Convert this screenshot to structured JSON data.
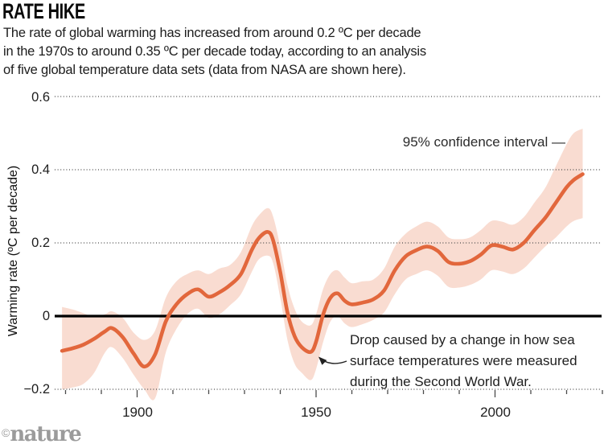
{
  "header": {
    "title": "RATE HIKE",
    "subtitle_lines": [
      "The rate of global warming has increased from around 0.2 ºC per decade",
      "in the 1970s to around 0.35 ºC per decade today, according to an analysis",
      "of five global temperature data sets (data from NASA are shown here)."
    ]
  },
  "annotations": {
    "confidence_interval": "95% confidence interval —",
    "drop_note_lines": [
      "Drop caused by a change in how sea",
      "surface temperatures were measured",
      "during the Second World War."
    ]
  },
  "watermark": {
    "symbol": "©",
    "brand": "nature"
  },
  "colors": {
    "line": "#e2673c",
    "band": "#f9dcd1",
    "zero_axis": "#000000",
    "grid": "#4a4a4a",
    "annotation_arrow": "#222222",
    "watermark": "#9b9b9b"
  },
  "chart_data": {
    "type": "line",
    "title": "RATE HIKE",
    "xlabel": "",
    "ylabel": "Warming rate (ºC per decade)",
    "xlim": [
      1877,
      2030
    ],
    "ylim": [
      -0.2,
      0.6
    ],
    "grid": "dotted-horizontal",
    "legend_position": "none",
    "y_ticks": {
      "values": [
        0.6,
        0.4,
        0.2,
        0,
        -0.2
      ],
      "labels": [
        "0.6",
        "0.4",
        "0.2",
        "0",
        "−0.2"
      ]
    },
    "x_ticks": {
      "values": [
        1900,
        1950,
        2000
      ],
      "labels": [
        "1900",
        "1950",
        "2000"
      ],
      "minor_start": 1880,
      "minor_end": 2030,
      "minor_step": 10
    },
    "series": [
      {
        "name": "Warming rate (NASA data)",
        "x": [
          1879,
          1882,
          1885,
          1888,
          1891,
          1893,
          1896,
          1899,
          1902,
          1905,
          1908,
          1911,
          1914,
          1917,
          1920,
          1923,
          1926,
          1929,
          1932,
          1934,
          1936.5,
          1938,
          1940,
          1942,
          1944,
          1946,
          1948.5,
          1950,
          1952,
          1954,
          1956,
          1958,
          1960,
          1963,
          1966,
          1969,
          1972,
          1975,
          1978,
          1981,
          1984,
          1987,
          1990,
          1993,
          1996,
          1999,
          2002,
          2005,
          2008,
          2011,
          2014,
          2017,
          2020,
          2022,
          2024.5
        ],
        "y": [
          -0.095,
          -0.088,
          -0.078,
          -0.062,
          -0.042,
          -0.033,
          -0.058,
          -0.102,
          -0.138,
          -0.105,
          -0.015,
          0.032,
          0.06,
          0.073,
          0.053,
          0.065,
          0.085,
          0.115,
          0.18,
          0.213,
          0.23,
          0.207,
          0.12,
          0.01,
          -0.055,
          -0.085,
          -0.098,
          -0.07,
          0.005,
          0.05,
          0.062,
          0.042,
          0.032,
          0.037,
          0.046,
          0.07,
          0.125,
          0.163,
          0.18,
          0.19,
          0.178,
          0.148,
          0.143,
          0.15,
          0.168,
          0.193,
          0.19,
          0.182,
          0.2,
          0.235,
          0.268,
          0.31,
          0.352,
          0.372,
          0.388
        ]
      }
    ],
    "band": {
      "name": "95% confidence interval",
      "x": [
        1879,
        1882,
        1885,
        1888,
        1891,
        1893,
        1896,
        1899,
        1902,
        1905,
        1908,
        1911,
        1914,
        1917,
        1920,
        1923,
        1926,
        1929,
        1932,
        1934,
        1936.5,
        1938,
        1940,
        1942,
        1944,
        1946,
        1948.5,
        1950,
        1952,
        1954,
        1956,
        1958,
        1960,
        1963,
        1966,
        1969,
        1972,
        1975,
        1978,
        1981,
        1984,
        1987,
        1990,
        1993,
        1996,
        1999,
        2002,
        2005,
        2008,
        2011,
        2014,
        2017,
        2020,
        2022,
        2024.5
      ],
      "upper": [
        0.025,
        0.018,
        0.008,
        -0.003,
        0.005,
        0.013,
        -0.005,
        -0.045,
        -0.065,
        -0.04,
        0.05,
        0.095,
        0.115,
        0.125,
        0.115,
        0.13,
        0.14,
        0.175,
        0.245,
        0.275,
        0.295,
        0.272,
        0.19,
        0.085,
        0.02,
        -0.015,
        -0.025,
        0.005,
        0.075,
        0.115,
        0.125,
        0.105,
        0.09,
        0.095,
        0.1,
        0.13,
        0.19,
        0.225,
        0.245,
        0.258,
        0.245,
        0.215,
        0.21,
        0.215,
        0.235,
        0.26,
        0.258,
        0.25,
        0.27,
        0.31,
        0.35,
        0.41,
        0.47,
        0.5,
        0.512
      ],
      "lower": [
        -0.2,
        -0.195,
        -0.185,
        -0.155,
        -0.1,
        -0.085,
        -0.115,
        -0.16,
        -0.2,
        -0.225,
        -0.1,
        -0.035,
        0.005,
        0.02,
        -0.005,
        0.005,
        0.03,
        0.06,
        0.12,
        0.155,
        0.165,
        0.145,
        0.05,
        -0.065,
        -0.13,
        -0.155,
        -0.175,
        -0.145,
        -0.07,
        -0.015,
        0,
        -0.02,
        -0.03,
        -0.022,
        -0.01,
        0.01,
        0.06,
        0.1,
        0.115,
        0.125,
        0.11,
        0.08,
        0.078,
        0.085,
        0.1,
        0.125,
        0.122,
        0.115,
        0.13,
        0.16,
        0.19,
        0.215,
        0.245,
        0.26,
        0.268
      ]
    }
  }
}
